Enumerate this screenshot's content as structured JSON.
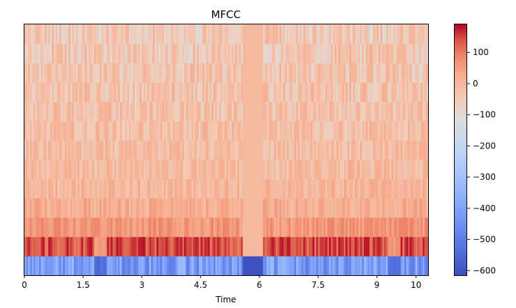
{
  "chart_data": {
    "type": "heatmap",
    "title": "MFCC",
    "xlabel": "Time",
    "ylabel": "",
    "xlim": [
      0,
      10.31
    ],
    "x_ticks": [
      {
        "value": 0,
        "label": "0"
      },
      {
        "value": 1.5,
        "label": "1.5"
      },
      {
        "value": 3,
        "label": "3"
      },
      {
        "value": 4.5,
        "label": "4.5"
      },
      {
        "value": 6,
        "label": "6"
      },
      {
        "value": 7.5,
        "label": "7.5"
      },
      {
        "value": 9,
        "label": "9"
      },
      {
        "value": 10,
        "label": "10"
      }
    ],
    "n_coefficients": 13,
    "colormap": "coolwarm",
    "colorbar": {
      "vmin": -615,
      "vmax": 190,
      "ticks": [
        {
          "value": 100,
          "label": "100"
        },
        {
          "value": 0,
          "label": "0"
        },
        {
          "value": -100,
          "label": "−100"
        },
        {
          "value": -200,
          "label": "−200"
        },
        {
          "value": -300,
          "label": "−300"
        },
        {
          "value": -400,
          "label": "−400"
        },
        {
          "value": -500,
          "label": "−500"
        },
        {
          "value": -600,
          "label": "−600"
        }
      ]
    },
    "silent_interval": [
      5.6,
      6.1
    ],
    "coefficient_means": [
      -410,
      140,
      60,
      20,
      0,
      -10,
      -15,
      -20,
      -25,
      -30,
      -35,
      -40,
      -45
    ],
    "coefficient_silence": [
      -600,
      -5,
      -5,
      -5,
      -5,
      -5,
      -5,
      -5,
      -5,
      -5,
      -5,
      -5,
      -5
    ],
    "low_energy_segments": [
      [
        1.8,
        2.1
      ],
      [
        5.6,
        6.1
      ],
      [
        9.3,
        9.6
      ]
    ],
    "colors": {
      "background": "#ffffff",
      "axes": "#000000",
      "cmap_stops": [
        [
          0.0,
          "#3b4cc0"
        ],
        [
          0.125,
          "#5977e3"
        ],
        [
          0.25,
          "#7b9ff9"
        ],
        [
          0.375,
          "#9ebeff"
        ],
        [
          0.5,
          "#c0d4f5"
        ],
        [
          0.625,
          "#dddcdc"
        ],
        [
          0.7,
          "#f2cbb7"
        ],
        [
          0.8,
          "#f7ac8e"
        ],
        [
          0.875,
          "#ee8468"
        ],
        [
          0.94,
          "#d65244"
        ],
        [
          1.0,
          "#b40426"
        ]
      ]
    }
  }
}
